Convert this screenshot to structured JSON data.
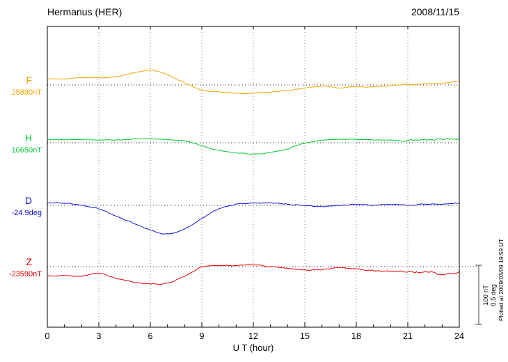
{
  "header": {
    "title": "Hermanus (HER)",
    "date": "2008/11/15"
  },
  "axis": {
    "xlabel": "U T (hour)"
  },
  "scalebar": {
    "nt": "100 nT",
    "deg": "0.5 deg"
  },
  "note": "Plotted at 2009/03/09 19:59 UT",
  "chart_data": {
    "type": "line",
    "title": "Hermanus (HER)",
    "date": "2008/11/15",
    "xlabel": "U T (hour)",
    "x_range": [
      0,
      24
    ],
    "x_ticks": [
      0,
      3,
      6,
      9,
      12,
      15,
      18,
      21,
      24
    ],
    "grid": "vertical-dotted-every-3h, dotted-baseline-per-series",
    "legend_position": "left-of-each-trace",
    "scale_reference": {
      "nT_per_bar": 100,
      "deg_per_bar": 0.5
    },
    "x_hours": [
      0,
      1,
      2,
      3,
      4,
      5,
      6,
      7,
      8,
      9,
      10,
      11,
      12,
      13,
      14,
      15,
      16,
      17,
      18,
      19,
      20,
      21,
      22,
      23,
      24
    ],
    "offsets_note": "series values are offsets from each baseline_value, sampled hourly 0-24 UT",
    "series": [
      {
        "name": "F",
        "label": "F",
        "baseline_label": "25890nT",
        "baseline_value": 25890,
        "unit": "nT",
        "color": "#F5A300",
        "values": [
          10,
          10,
          12,
          12,
          14,
          20,
          25,
          17,
          4,
          -9,
          -12,
          -14,
          -14,
          -12,
          -9,
          -5,
          -2,
          -5,
          -3,
          -3,
          -1,
          1,
          2,
          3,
          6
        ]
      },
      {
        "name": "H",
        "label": "H",
        "baseline_label": "10650nT",
        "baseline_value": 10650,
        "unit": "nT",
        "color": "#00C832",
        "values": [
          6,
          5,
          6,
          5,
          5,
          6,
          7,
          5,
          3,
          -5,
          -13,
          -17,
          -19,
          -17,
          -10,
          -1,
          4,
          6,
          6,
          5,
          4,
          4,
          5,
          6,
          6
        ]
      },
      {
        "name": "D",
        "label": "D",
        "baseline_label": "-24.9deg",
        "baseline_value": -24.9,
        "unit": "deg",
        "color": "#1414D2",
        "values": [
          0.02,
          0.02,
          0,
          -0.03,
          -0.09,
          -0.15,
          -0.21,
          -0.24,
          -0.2,
          -0.11,
          -0.03,
          0.01,
          0.02,
          0.02,
          0.01,
          0,
          -0.01,
          0,
          0.01,
          0,
          0.01,
          0,
          0.01,
          0.01,
          0.02
        ]
      },
      {
        "name": "Z",
        "label": "Z",
        "baseline_label": "-23590nT",
        "baseline_value": -23590,
        "unit": "nT",
        "color": "#E00000",
        "values": [
          -16,
          -15,
          -16,
          -11,
          -20,
          -26,
          -29,
          -28,
          -16,
          -1,
          2,
          2,
          3,
          0,
          -3,
          -6,
          -5,
          -2,
          -4,
          -7,
          -8,
          -9,
          -9,
          -12,
          -11
        ]
      }
    ]
  }
}
